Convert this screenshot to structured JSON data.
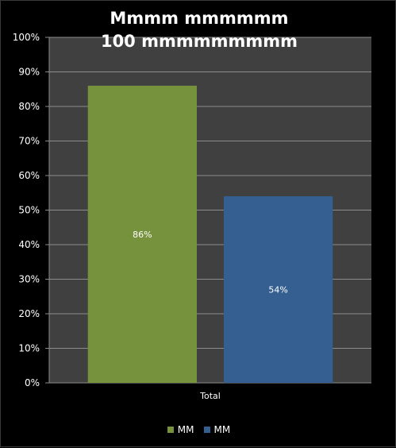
{
  "chart_data": {
    "type": "bar",
    "title": "Mmmm mmmmmm 100 mmmmmmmmm",
    "categories": [
      "Total"
    ],
    "series": [
      {
        "name": "MM",
        "values": [
          86
        ],
        "color": "#76923c",
        "data_label": "86%"
      },
      {
        "name": "MM",
        "values": [
          54
        ],
        "color": "#365f91",
        "data_label": "54%"
      }
    ],
    "y_ticks": [
      "0%",
      "10%",
      "20%",
      "30%",
      "40%",
      "50%",
      "60%",
      "70%",
      "80%",
      "90%",
      "100%"
    ],
    "ylim": [
      0,
      100
    ],
    "grid": true,
    "legend_position": "bottom",
    "plot_background": "#404040",
    "gridline_color": "#8c8c8c",
    "text_color": "#ffffff"
  }
}
